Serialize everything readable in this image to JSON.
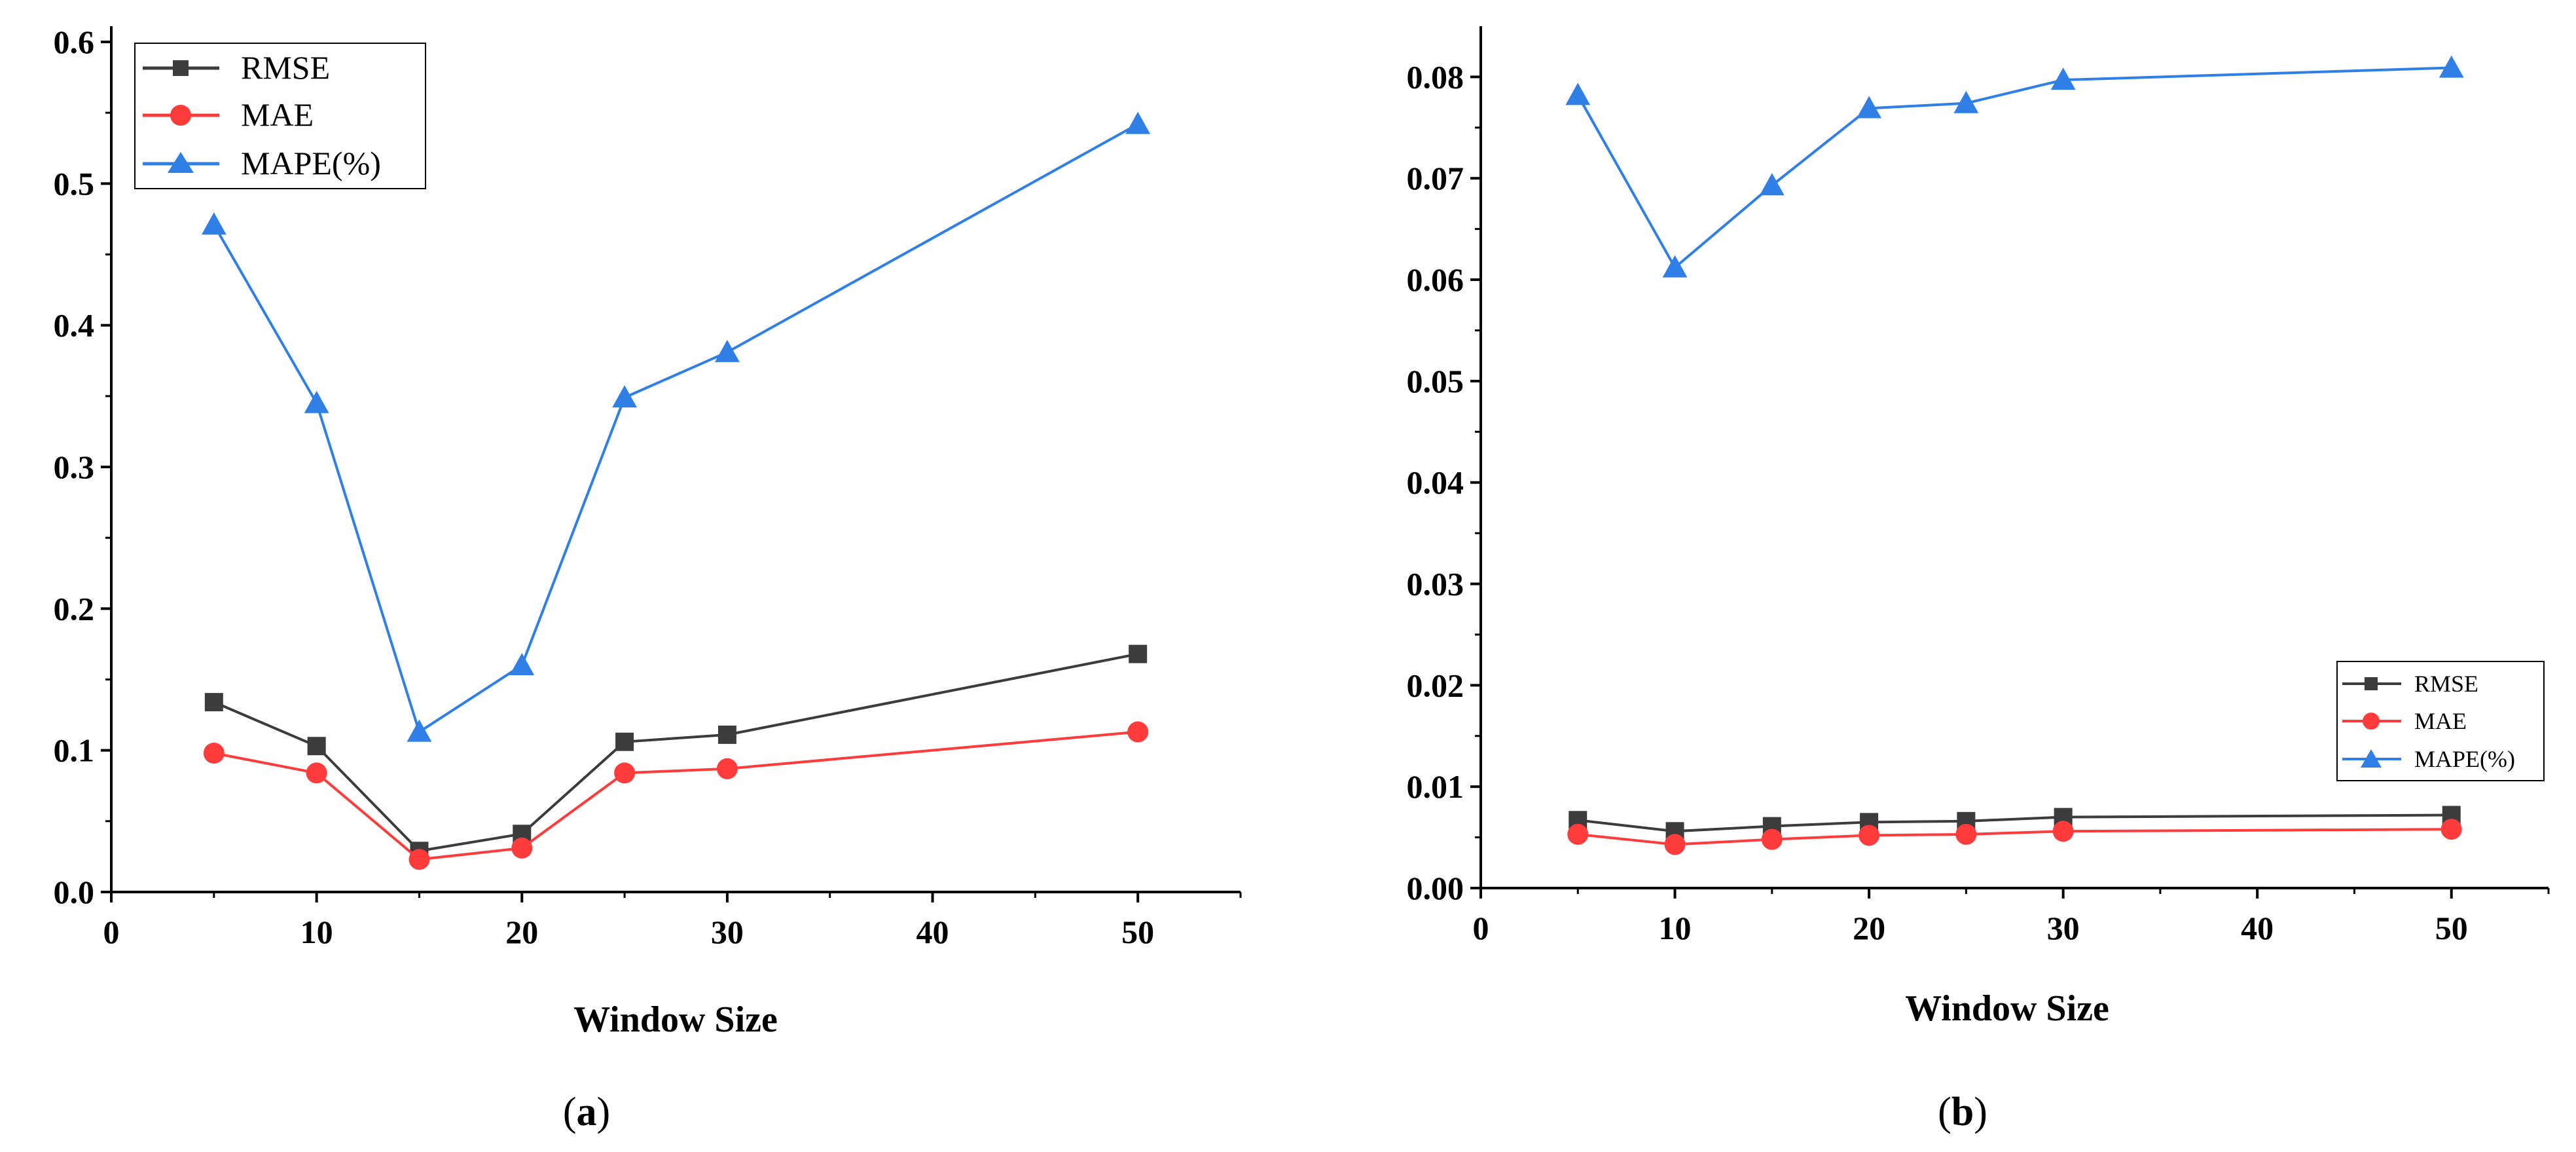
{
  "chart_data": [
    {
      "type": "line",
      "panel_label": "(a)",
      "panel_letter": "a",
      "xlabel": "Window Size",
      "ylabel": "",
      "xlim": [
        0,
        55
      ],
      "ylim": [
        0,
        0.6
      ],
      "xticks": [
        0,
        10,
        20,
        30,
        40,
        50
      ],
      "xtick_labels": [
        "0",
        "10",
        "20",
        "30",
        "40",
        "50"
      ],
      "yticks": [
        0,
        0.1,
        0.2,
        0.3,
        0.4,
        0.5,
        0.6
      ],
      "ytick_labels": [
        "0.0",
        "0.1",
        "0.2",
        "0.3",
        "0.4",
        "0.5",
        "0.6"
      ],
      "legend_position": "top-left",
      "x": [
        5,
        10,
        15,
        20,
        25,
        30,
        50
      ],
      "series": [
        {
          "name": "RMSE",
          "color": "#3c3c3c",
          "marker": "square",
          "values": [
            0.134,
            0.103,
            0.029,
            0.041,
            0.106,
            0.111,
            0.168
          ]
        },
        {
          "name": "MAE",
          "color": "#ff3b3b",
          "marker": "circle",
          "values": [
            0.098,
            0.084,
            0.023,
            0.031,
            0.084,
            0.087,
            0.113
          ]
        },
        {
          "name": "MAPE(%)",
          "color": "#2f7fe6",
          "marker": "triangle",
          "values": [
            0.471,
            0.345,
            0.113,
            0.16,
            0.349,
            0.381,
            0.542
          ]
        }
      ]
    },
    {
      "type": "line",
      "panel_label": "(b)",
      "panel_letter": "b",
      "xlabel": "Window Size",
      "ylabel": "",
      "xlim": [
        0,
        55
      ],
      "ylim": [
        0,
        0.085
      ],
      "xticks": [
        0,
        10,
        20,
        30,
        40,
        50
      ],
      "xtick_labels": [
        "0",
        "10",
        "20",
        "30",
        "40",
        "50"
      ],
      "yticks": [
        0,
        0.01,
        0.02,
        0.03,
        0.04,
        0.05,
        0.06,
        0.07,
        0.08
      ],
      "ytick_labels": [
        "0.00",
        "0.01",
        "0.02",
        "0.03",
        "0.04",
        "0.05",
        "0.06",
        "0.07",
        "0.08"
      ],
      "legend_position": "bottom-right",
      "x": [
        5,
        10,
        15,
        20,
        25,
        30,
        50
      ],
      "series": [
        {
          "name": "RMSE",
          "color": "#3c3c3c",
          "marker": "square",
          "values": [
            0.0067,
            0.0056,
            0.0061,
            0.0065,
            0.0066,
            0.007,
            0.0072
          ]
        },
        {
          "name": "MAE",
          "color": "#ff3b3b",
          "marker": "circle",
          "values": [
            0.0053,
            0.0043,
            0.0048,
            0.0052,
            0.0053,
            0.0056,
            0.0058
          ]
        },
        {
          "name": "MAPE(%)",
          "color": "#2f7fe6",
          "marker": "triangle",
          "values": [
            0.0782,
            0.0612,
            0.0693,
            0.0769,
            0.0774,
            0.0797,
            0.0809
          ]
        }
      ]
    }
  ]
}
